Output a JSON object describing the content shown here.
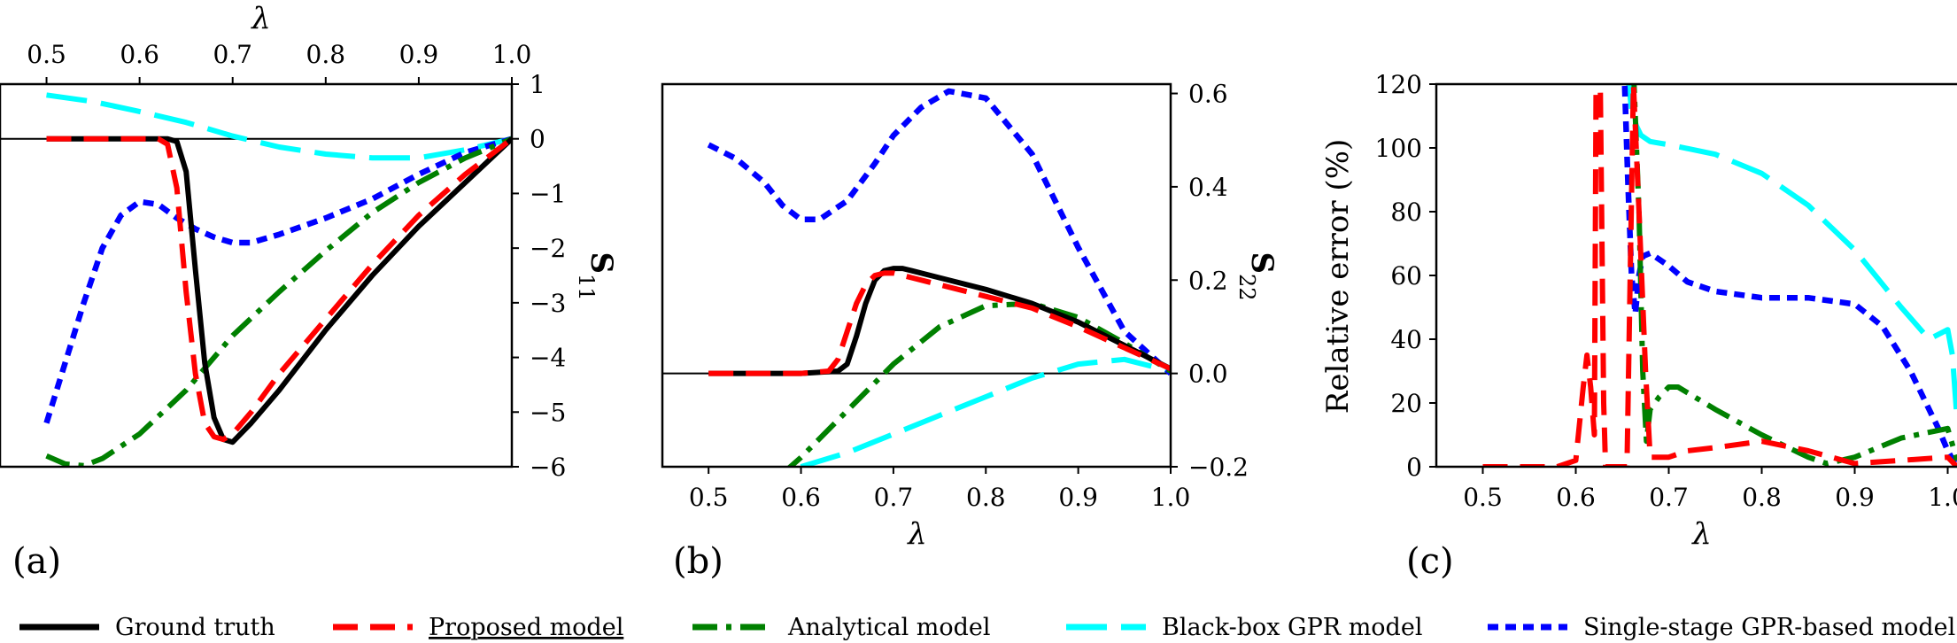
{
  "colors": {
    "ground_truth": "#000000",
    "proposed": "#ff0000",
    "analytical": "#008000",
    "blackbox": "#00ffff",
    "singlestage": "#0000ff"
  },
  "legend": [
    {
      "key": "ground_truth",
      "label": "Ground truth",
      "style": "solid",
      "underline": false
    },
    {
      "key": "proposed",
      "label": "Proposed model",
      "style": "dashed",
      "underline": true
    },
    {
      "key": "analytical",
      "label": "Analytical model",
      "style": "dashdot",
      "underline": false
    },
    {
      "key": "blackbox",
      "label": "Black-box GPR model",
      "style": "longdash",
      "underline": false
    },
    {
      "key": "singlestage",
      "label": "Single-stage GPR-based model",
      "style": "dotted",
      "underline": false
    }
  ],
  "chart_data": [
    {
      "panel": "(a)",
      "type": "line",
      "xlabel": "λ",
      "xlabel_position": "top",
      "ylabel": "S11",
      "ylabel_position": "right",
      "xlim": [
        0.45,
        1.0
      ],
      "ylim": [
        -6,
        1
      ],
      "xticks": [
        0.5,
        0.6,
        0.7,
        0.8,
        0.9,
        1.0
      ],
      "xtick_labels": [
        "0.5",
        "0.6",
        "0.7",
        "0.8",
        "0.9",
        "1.0"
      ],
      "yticks": [
        1,
        0,
        -1,
        -2,
        -3,
        -4,
        -5,
        -6
      ],
      "ytick_labels": [
        "1",
        "0",
        "−1",
        "−2",
        "−3",
        "−4",
        "−5",
        "−6"
      ],
      "hline": 0,
      "series": [
        {
          "key": "ground_truth",
          "x": [
            0.5,
            0.6,
            0.63,
            0.64,
            0.65,
            0.66,
            0.67,
            0.68,
            0.69,
            0.7,
            0.72,
            0.75,
            0.8,
            0.85,
            0.9,
            0.95,
            1.0
          ],
          "y": [
            0,
            0,
            0,
            -0.05,
            -0.6,
            -2.4,
            -4.1,
            -5.1,
            -5.5,
            -5.55,
            -5.2,
            -4.6,
            -3.5,
            -2.5,
            -1.6,
            -0.8,
            0
          ]
        },
        {
          "key": "proposed",
          "x": [
            0.5,
            0.6,
            0.62,
            0.63,
            0.64,
            0.65,
            0.66,
            0.67,
            0.68,
            0.69,
            0.7,
            0.72,
            0.75,
            0.8,
            0.85,
            0.9,
            0.95,
            1.0
          ],
          "y": [
            0,
            0,
            0,
            -0.1,
            -0.9,
            -2.8,
            -4.3,
            -5.2,
            -5.45,
            -5.5,
            -5.4,
            -5.0,
            -4.3,
            -3.3,
            -2.3,
            -1.4,
            -0.65,
            0
          ]
        },
        {
          "key": "analytical",
          "x": [
            0.5,
            0.52,
            0.54,
            0.56,
            0.6,
            0.65,
            0.7,
            0.75,
            0.8,
            0.85,
            0.9,
            0.95,
            1.0
          ],
          "y": [
            -5.8,
            -5.95,
            -5.98,
            -5.85,
            -5.4,
            -4.6,
            -3.6,
            -2.8,
            -2.05,
            -1.35,
            -0.8,
            -0.35,
            0
          ]
        },
        {
          "key": "blackbox",
          "x": [
            0.5,
            0.55,
            0.6,
            0.65,
            0.7,
            0.75,
            0.8,
            0.85,
            0.9,
            0.95,
            1.0
          ],
          "y": [
            0.8,
            0.68,
            0.5,
            0.3,
            0.05,
            -0.15,
            -0.28,
            -0.35,
            -0.35,
            -0.2,
            0
          ]
        },
        {
          "key": "singlestage",
          "x": [
            0.5,
            0.52,
            0.54,
            0.56,
            0.58,
            0.6,
            0.62,
            0.64,
            0.66,
            0.68,
            0.7,
            0.72,
            0.75,
            0.8,
            0.85,
            0.9,
            0.95,
            1.0
          ],
          "y": [
            -5.2,
            -4.1,
            -3.0,
            -2.0,
            -1.4,
            -1.15,
            -1.2,
            -1.45,
            -1.65,
            -1.8,
            -1.9,
            -1.9,
            -1.75,
            -1.45,
            -1.1,
            -0.65,
            -0.25,
            0
          ]
        }
      ]
    },
    {
      "panel": "(b)",
      "type": "line",
      "xlabel": "λ",
      "xlabel_position": "bottom",
      "ylabel": "S22",
      "ylabel_position": "right",
      "xlim": [
        0.45,
        1.0
      ],
      "ylim": [
        -0.2,
        0.62
      ],
      "xticks": [
        0.5,
        0.6,
        0.7,
        0.8,
        0.9,
        1.0
      ],
      "xtick_labels": [
        "0.5",
        "0.6",
        "0.7",
        "0.8",
        "0.9",
        "1.0"
      ],
      "yticks": [
        0.6,
        0.4,
        0.2,
        0.0,
        -0.2
      ],
      "ytick_labels": [
        "0.6",
        "0.4",
        "0.2",
        "0.0",
        "−0.2"
      ],
      "hline": 0,
      "series": [
        {
          "key": "ground_truth",
          "x": [
            0.5,
            0.6,
            0.64,
            0.65,
            0.66,
            0.67,
            0.68,
            0.69,
            0.7,
            0.71,
            0.72,
            0.75,
            0.8,
            0.85,
            0.9,
            0.95,
            1.0
          ],
          "y": [
            0,
            0,
            0.005,
            0.02,
            0.08,
            0.15,
            0.2,
            0.22,
            0.225,
            0.225,
            0.22,
            0.205,
            0.18,
            0.15,
            0.11,
            0.06,
            0.01
          ]
        },
        {
          "key": "proposed",
          "x": [
            0.5,
            0.6,
            0.63,
            0.64,
            0.65,
            0.66,
            0.67,
            0.68,
            0.69,
            0.7,
            0.72,
            0.75,
            0.8,
            0.85,
            0.9,
            0.95,
            1.0
          ],
          "y": [
            0,
            0,
            0.005,
            0.03,
            0.09,
            0.15,
            0.19,
            0.21,
            0.215,
            0.215,
            0.205,
            0.19,
            0.165,
            0.14,
            0.1,
            0.055,
            0.01
          ]
        },
        {
          "key": "analytical",
          "x": [
            0.54,
            0.56,
            0.6,
            0.65,
            0.7,
            0.75,
            0.8,
            0.85,
            0.9,
            0.95,
            1.0
          ],
          "y": [
            -0.28,
            -0.25,
            -0.18,
            -0.08,
            0.02,
            0.1,
            0.145,
            0.15,
            0.12,
            0.065,
            0.005
          ]
        },
        {
          "key": "blackbox",
          "x": [
            0.6,
            0.65,
            0.7,
            0.75,
            0.8,
            0.85,
            0.9,
            0.95,
            0.98,
            1.0
          ],
          "y": [
            -0.2,
            -0.17,
            -0.13,
            -0.09,
            -0.05,
            -0.01,
            0.02,
            0.03,
            0.015,
            0.005
          ]
        },
        {
          "key": "singlestage",
          "x": [
            0.5,
            0.53,
            0.56,
            0.58,
            0.6,
            0.62,
            0.65,
            0.68,
            0.7,
            0.73,
            0.76,
            0.8,
            0.85,
            0.9,
            0.95,
            1.0
          ],
          "y": [
            0.49,
            0.46,
            0.41,
            0.36,
            0.33,
            0.33,
            0.37,
            0.45,
            0.51,
            0.57,
            0.605,
            0.59,
            0.47,
            0.27,
            0.09,
            0.0
          ]
        }
      ]
    },
    {
      "panel": "(c)",
      "type": "line",
      "xlabel": "λ",
      "xlabel_position": "bottom",
      "ylabel": "Relative error (%)",
      "ylabel_position": "left",
      "xlim": [
        0.45,
        1.01
      ],
      "ylim": [
        0,
        120
      ],
      "xticks": [
        0.5,
        0.6,
        0.7,
        0.8,
        0.9,
        1.0
      ],
      "xtick_labels": [
        "0.5",
        "0.6",
        "0.7",
        "0.8",
        "0.9",
        "1.0"
      ],
      "yticks": [
        120,
        100,
        80,
        60,
        40,
        20,
        0
      ],
      "ytick_labels": [
        "120",
        "100",
        "80",
        "60",
        "40",
        "20",
        "0"
      ],
      "series": [
        {
          "key": "proposed",
          "x": [
            0.5,
            0.58,
            0.6,
            0.608,
            0.612,
            0.616,
            0.62,
            0.622,
            0.626,
            0.63,
            0.632,
            0.64,
            0.655,
            0.662,
            0.668,
            0.675,
            0.68,
            0.7,
            0.72,
            0.75,
            0.8,
            0.85,
            0.9,
            0.95,
            1.0,
            1.01
          ],
          "y": [
            0,
            0,
            2,
            25,
            35,
            25,
            10,
            130,
            130,
            20,
            0,
            0,
            0,
            120,
            80,
            30,
            3,
            3,
            5,
            6,
            8,
            5,
            1,
            2,
            3,
            0
          ]
        },
        {
          "key": "analytical",
          "x": [
            0.662,
            0.668,
            0.672,
            0.676,
            0.68,
            0.69,
            0.7,
            0.71,
            0.75,
            0.8,
            0.85,
            0.87,
            0.9,
            0.95,
            1.0,
            1.01
          ],
          "y": [
            125,
            80,
            30,
            8,
            18,
            22,
            25,
            25,
            18,
            10,
            3,
            1,
            3,
            9,
            12,
            2
          ]
        },
        {
          "key": "blackbox",
          "x": [
            0.655,
            0.66,
            0.665,
            0.67,
            0.68,
            0.7,
            0.75,
            0.8,
            0.85,
            0.9,
            0.95,
            0.98,
            1.0,
            1.005,
            1.01
          ],
          "y": [
            125,
            112,
            107,
            104,
            102,
            101,
            98,
            92,
            82,
            68,
            50,
            40,
            43,
            35,
            15
          ]
        },
        {
          "key": "singlestage",
          "x": [
            0.652,
            0.656,
            0.66,
            0.664,
            0.668,
            0.672,
            0.68,
            0.7,
            0.72,
            0.75,
            0.8,
            0.85,
            0.9,
            0.93,
            0.96,
            0.99,
            1.0,
            1.01
          ],
          "y": [
            125,
            90,
            60,
            48,
            60,
            66,
            67,
            63,
            58,
            55,
            53,
            53,
            51,
            44,
            30,
            12,
            5,
            0
          ]
        }
      ]
    }
  ]
}
